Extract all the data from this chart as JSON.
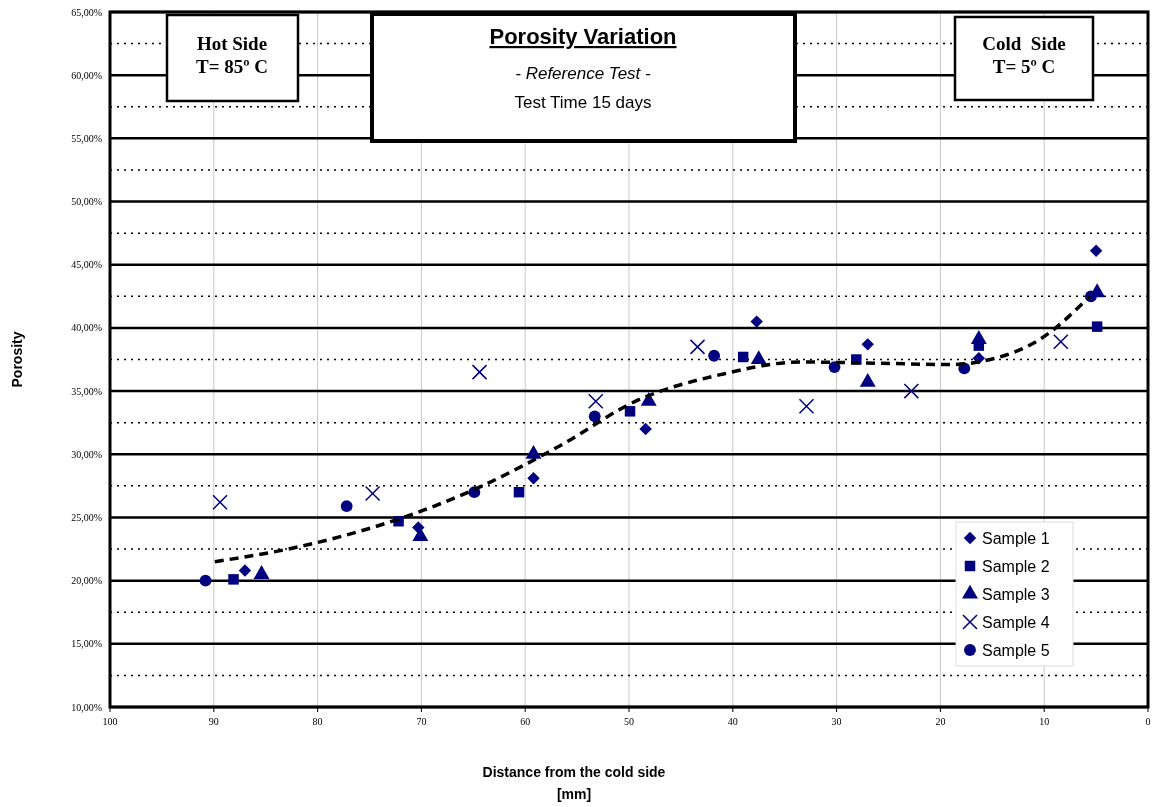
{
  "chart_data": {
    "type": "scatter",
    "title": "Porosity Variation",
    "subtitle": "- Reference Test -",
    "annotations": [
      "Hot Side\nT= 85º C",
      "Cold  Side\nT= 5º C",
      "Test Time 15 days"
    ],
    "xlabel": "Distance from the cold side\n[mm]",
    "ylabel": "Porosity",
    "xlim": [
      100,
      0
    ],
    "xticks": [
      100,
      90,
      80,
      70,
      60,
      50,
      40,
      30,
      20,
      10,
      0
    ],
    "ylim": [
      10,
      65
    ],
    "yticks": [
      {
        "value": 10,
        "label": "10,00%"
      },
      {
        "value": 12.5,
        "label": null
      },
      {
        "value": 15,
        "label": "15,00%"
      },
      {
        "value": 17.5,
        "label": null
      },
      {
        "value": 20,
        "label": "20,00%"
      },
      {
        "value": 22.5,
        "label": null
      },
      {
        "value": 25,
        "label": "25,00%"
      },
      {
        "value": 27.5,
        "label": null
      },
      {
        "value": 30,
        "label": "30,00%"
      },
      {
        "value": 32.5,
        "label": null
      },
      {
        "value": 35,
        "label": "35,00%"
      },
      {
        "value": 37.5,
        "label": null
      },
      {
        "value": 40,
        "label": "40,00%"
      },
      {
        "value": 42.5,
        "label": null
      },
      {
        "value": 45,
        "label": "45,00%"
      },
      {
        "value": 47.5,
        "label": null
      },
      {
        "value": 50,
        "label": "50,00%"
      },
      {
        "value": 52.5,
        "label": null
      },
      {
        "value": 55,
        "label": "55,00%"
      },
      {
        "value": 57.5,
        "label": null
      },
      {
        "value": 60,
        "label": "60,00%"
      },
      {
        "value": 62.5,
        "label": null
      },
      {
        "value": 65,
        "label": "65,00%"
      }
    ],
    "grid": true,
    "legend": "bottom right",
    "series": [
      {
        "name": "Sample 1",
        "color": "#000080",
        "marker": "diamond",
        "x": [
          87.0,
          70.3,
          59.2,
          48.4,
          37.7,
          27.0,
          16.3,
          5.0
        ],
        "values": [
          20.8,
          24.2,
          28.1,
          32.0,
          40.5,
          38.7,
          37.6,
          46.1
        ]
      },
      {
        "name": "Sample 2",
        "color": "#000080",
        "marker": "square",
        "x": [
          88.1,
          72.2,
          60.6,
          49.9,
          39.0,
          28.1,
          16.3,
          4.9
        ],
        "values": [
          20.1,
          24.7,
          27.0,
          33.4,
          37.7,
          37.5,
          38.6,
          40.1
        ]
      },
      {
        "name": "Sample 3",
        "color": "#000080",
        "marker": "triangle",
        "x": [
          85.4,
          70.1,
          59.2,
          48.1,
          37.5,
          27.0,
          16.3,
          4.9
        ],
        "values": [
          20.5,
          23.5,
          30.0,
          34.2,
          37.5,
          35.7,
          39.1,
          42.8
        ]
      },
      {
        "name": "Sample 4",
        "color": "#000080",
        "marker": "cross",
        "x": [
          89.4,
          74.7,
          64.4,
          53.2,
          43.4,
          32.9,
          22.8,
          8.4
        ],
        "values": [
          26.2,
          26.9,
          36.5,
          34.2,
          38.5,
          33.8,
          35.0,
          38.9
        ]
      },
      {
        "name": "Sample 5",
        "color": "#000080",
        "marker": "circle",
        "x": [
          90.8,
          77.2,
          64.9,
          53.3,
          41.8,
          30.2,
          17.7,
          5.5
        ],
        "values": [
          20.0,
          25.9,
          27.0,
          33.0,
          37.8,
          36.9,
          36.8,
          42.5
        ]
      },
      {
        "type": "line",
        "color": "#000000",
        "marker": "none",
        "line_style": "dashed",
        "x": [
          89.9,
          81.7,
          72.1,
          64.4,
          56.6,
          49.1,
          41.2,
          33.5,
          25.8,
          19.1,
          15.2,
          10.4,
          5.6
        ],
        "values": [
          21.5,
          22.7,
          24.9,
          27.4,
          30.7,
          34.3,
          36.3,
          37.3,
          37.2,
          37.1,
          37.5,
          39.1,
          42.5
        ]
      }
    ]
  }
}
